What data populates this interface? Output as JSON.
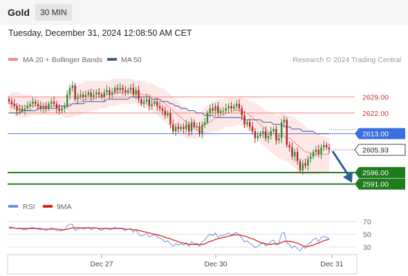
{
  "header": {
    "instrument": "Gold",
    "timeframe": "30 MIN"
  },
  "timestamp": "Tuesday, December 31, 2024 12:08:50 AM CET",
  "legend": {
    "bollinger": "MA 20 + Bollinger Bands",
    "ma50": "MA 50",
    "credit": "Research © 2024 Trading Central",
    "rsi": "RSI",
    "rsi_ma": "9MA"
  },
  "colors": {
    "bollinger": "#f28b8b",
    "ma50": "#3d5a99",
    "up_candle": "#2e8b2e",
    "down_candle": "#b22222",
    "resistance": "#f19a9a",
    "pivot": "#6f8ff0",
    "support": "#1e7b1e",
    "rsi": "#6f8fe6",
    "rsi_ma": "#dd2222",
    "arrow": "#2e5c8e"
  },
  "chart_data": [
    {
      "type": "candlestick",
      "title": "Gold",
      "timeframe": "30 MIN",
      "x_ticks": [
        "Dec 27",
        "Dec 30",
        "Dec 31"
      ],
      "ylim": [
        2587,
        2640
      ],
      "last_price": "2605.93",
      "levels": [
        {
          "value": "2629.00",
          "role": "resistance"
        },
        {
          "value": "2622.00",
          "role": "resistance"
        },
        {
          "value": "2613.00",
          "role": "pivot"
        },
        {
          "value": "2596.00",
          "role": "support"
        },
        {
          "value": "2591.00",
          "role": "support"
        }
      ],
      "closes": [
        2627,
        2626,
        2625,
        2623,
        2624,
        2623,
        2624,
        2625,
        2626,
        2627,
        2626,
        2625,
        2624,
        2625,
        2624,
        2626,
        2627,
        2626,
        2624,
        2623,
        2624,
        2625,
        2630,
        2633,
        2634,
        2628,
        2629,
        2630,
        2629,
        2630,
        2631,
        2629,
        2630,
        2631,
        2630,
        2629,
        2631,
        2632,
        2630,
        2631,
        2633,
        2632,
        2633,
        2632,
        2631,
        2632,
        2633,
        2630,
        2632,
        2628,
        2626,
        2627,
        2628,
        2625,
        2626,
        2627,
        2625,
        2624,
        2623,
        2621,
        2622,
        2617,
        2614,
        2616,
        2615,
        2616,
        2615,
        2617,
        2614,
        2618,
        2616,
        2616,
        2613,
        2617,
        2618,
        2622,
        2624,
        2623,
        2625,
        2622,
        2623,
        2623,
        2624,
        2625,
        2624,
        2625,
        2626,
        2624,
        2621,
        2617,
        2618,
        2616,
        2614,
        2611,
        2612,
        2613,
        2614,
        2611,
        2612,
        2614,
        2615,
        2610,
        2611,
        2618,
        2619,
        2608,
        2607,
        2603,
        2605,
        2601,
        2597,
        2600,
        2599,
        2602,
        2603,
        2605,
        2606,
        2604,
        2607,
        2608,
        2607,
        2606
      ],
      "ma20": [
        2626,
        2626,
        2626,
        2625,
        2625,
        2625,
        2625,
        2625,
        2625,
        2625,
        2625,
        2625,
        2625,
        2625,
        2625,
        2625,
        2625,
        2625,
        2625,
        2625,
        2625,
        2625,
        2625,
        2626,
        2626,
        2626,
        2627,
        2627,
        2627,
        2628,
        2628,
        2628,
        2628,
        2629,
        2629,
        2629,
        2630,
        2630,
        2630,
        2630,
        2631,
        2631,
        2631,
        2631,
        2631,
        2631,
        2631,
        2631,
        2631,
        2631,
        2630,
        2630,
        2630,
        2630,
        2629,
        2629,
        2628,
        2628,
        2627,
        2626,
        2625,
        2624,
        2623,
        2622,
        2621,
        2620,
        2619,
        2618,
        2617,
        2616,
        2616,
        2616,
        2616,
        2616,
        2617,
        2618,
        2618,
        2619,
        2620,
        2620,
        2621,
        2621,
        2622,
        2622,
        2622,
        2623,
        2623,
        2623,
        2623,
        2622,
        2622,
        2621,
        2620,
        2619,
        2618,
        2617,
        2616,
        2615,
        2614,
        2613,
        2613,
        2612,
        2612,
        2612,
        2612,
        2611,
        2611,
        2610,
        2609,
        2608,
        2607,
        2606,
        2605,
        2605,
        2604,
        2604,
        2604,
        2604,
        2604,
        2604,
        2604,
        2604
      ],
      "bb_upper": [
        2630,
        2631,
        2631,
        2631,
        2631,
        2630,
        2630,
        2630,
        2630,
        2629,
        2629,
        2629,
        2629,
        2629,
        2629,
        2629,
        2629,
        2629,
        2629,
        2629,
        2629,
        2629,
        2631,
        2633,
        2634,
        2634,
        2634,
        2635,
        2635,
        2636,
        2636,
        2636,
        2636,
        2636,
        2636,
        2636,
        2636,
        2636,
        2636,
        2637,
        2637,
        2637,
        2637,
        2637,
        2637,
        2637,
        2637,
        2637,
        2636,
        2636,
        2636,
        2636,
        2635,
        2635,
        2635,
        2634,
        2634,
        2633,
        2633,
        2632,
        2631,
        2630,
        2629,
        2628,
        2627,
        2626,
        2625,
        2624,
        2623,
        2622,
        2622,
        2622,
        2622,
        2623,
        2624,
        2625,
        2626,
        2627,
        2627,
        2628,
        2628,
        2628,
        2629,
        2629,
        2629,
        2629,
        2629,
        2629,
        2629,
        2628,
        2628,
        2627,
        2627,
        2626,
        2626,
        2625,
        2624,
        2623,
        2623,
        2622,
        2622,
        2621,
        2621,
        2622,
        2622,
        2621,
        2621,
        2620,
        2620,
        2619,
        2618,
        2617,
        2616,
        2615,
        2615,
        2614,
        2613,
        2613,
        2612,
        2612,
        2611,
        2611
      ],
      "bb_lower": [
        2622,
        2622,
        2621,
        2620,
        2620,
        2620,
        2620,
        2620,
        2621,
        2621,
        2621,
        2621,
        2621,
        2621,
        2621,
        2621,
        2621,
        2621,
        2621,
        2621,
        2621,
        2620,
        2620,
        2620,
        2620,
        2621,
        2621,
        2621,
        2622,
        2622,
        2622,
        2623,
        2623,
        2623,
        2624,
        2624,
        2624,
        2624,
        2625,
        2625,
        2625,
        2625,
        2626,
        2626,
        2626,
        2626,
        2626,
        2626,
        2626,
        2625,
        2625,
        2625,
        2624,
        2624,
        2623,
        2622,
        2621,
        2620,
        2619,
        2618,
        2617,
        2616,
        2615,
        2614,
        2613,
        2612,
        2612,
        2611,
        2611,
        2611,
        2611,
        2611,
        2611,
        2612,
        2612,
        2613,
        2613,
        2614,
        2614,
        2614,
        2615,
        2615,
        2616,
        2616,
        2616,
        2616,
        2617,
        2617,
        2616,
        2616,
        2615,
        2614,
        2613,
        2612,
        2611,
        2609,
        2608,
        2607,
        2606,
        2605,
        2604,
        2603,
        2602,
        2602,
        2601,
        2601,
        2600,
        2599,
        2598,
        2597,
        2596,
        2595,
        2595,
        2595,
        2595,
        2595,
        2595,
        2595,
        2596,
        2596,
        2596,
        2596
      ],
      "ma50": [
        2622,
        2622,
        2622,
        2622,
        2622,
        2623,
        2623,
        2623,
        2623,
        2623,
        2623,
        2624,
        2624,
        2624,
        2624,
        2624,
        2624,
        2624,
        2624,
        2625,
        2625,
        2625,
        2625,
        2625,
        2626,
        2626,
        2626,
        2626,
        2626,
        2627,
        2627,
        2627,
        2627,
        2627,
        2627,
        2627,
        2627,
        2628,
        2628,
        2628,
        2628,
        2628,
        2628,
        2628,
        2628,
        2628,
        2629,
        2629,
        2629,
        2629,
        2629,
        2629,
        2629,
        2629,
        2628,
        2628,
        2628,
        2628,
        2627,
        2627,
        2627,
        2626,
        2626,
        2625,
        2625,
        2624,
        2624,
        2624,
        2623,
        2623,
        2623,
        2622,
        2622,
        2622,
        2621,
        2621,
        2621,
        2621,
        2620,
        2620,
        2620,
        2620,
        2620,
        2620,
        2620,
        2620,
        2620,
        2620,
        2620,
        2619,
        2619,
        2619,
        2619,
        2619,
        2619,
        2619,
        2618,
        2618,
        2618,
        2618,
        2617,
        2617,
        2617,
        2617,
        2616,
        2616,
        2616,
        2615,
        2615,
        2615,
        2615,
        2614,
        2614,
        2614,
        2614,
        2614,
        2613,
        2613,
        2613,
        2613,
        2613,
        2613
      ]
    },
    {
      "type": "line",
      "title": "RSI",
      "y_ticks": [
        "70",
        "50",
        "30"
      ],
      "ylim": [
        20,
        80
      ],
      "series": [
        {
          "name": "RSI",
          "values": [
            62,
            61,
            60,
            59,
            60,
            58,
            57,
            58,
            60,
            61,
            59,
            58,
            57,
            58,
            56,
            58,
            60,
            59,
            56,
            55,
            56,
            57,
            63,
            66,
            65,
            56,
            58,
            60,
            58,
            59,
            61,
            57,
            59,
            60,
            58,
            56,
            59,
            60,
            57,
            58,
            61,
            59,
            60,
            58,
            56,
            58,
            59,
            53,
            57,
            50,
            47,
            49,
            51,
            46,
            48,
            50,
            46,
            44,
            42,
            38,
            40,
            35,
            31,
            35,
            33,
            35,
            33,
            37,
            31,
            39,
            35,
            36,
            31,
            39,
            41,
            47,
            50,
            48,
            52,
            45,
            48,
            48,
            50,
            52,
            49,
            51,
            53,
            49,
            44,
            38,
            40,
            36,
            33,
            29,
            31,
            34,
            37,
            32,
            34,
            39,
            41,
            33,
            36,
            51,
            53,
            36,
            34,
            28,
            32,
            27,
            24,
            30,
            28,
            35,
            37,
            42,
            44,
            38,
            45,
            47,
            45,
            43
          ]
        },
        {
          "name": "9MA",
          "values": [
            60,
            60,
            60,
            59,
            59,
            59,
            59,
            59,
            59,
            59,
            59,
            59,
            59,
            58,
            58,
            58,
            58,
            58,
            58,
            58,
            57,
            57,
            58,
            59,
            60,
            60,
            60,
            60,
            60,
            60,
            60,
            60,
            60,
            60,
            59,
            59,
            59,
            59,
            59,
            59,
            59,
            59,
            59,
            59,
            58,
            58,
            58,
            57,
            57,
            56,
            55,
            54,
            53,
            52,
            51,
            50,
            49,
            48,
            47,
            45,
            44,
            43,
            41,
            40,
            38,
            37,
            36,
            35,
            34,
            34,
            34,
            34,
            34,
            34,
            35,
            37,
            39,
            40,
            42,
            43,
            44,
            45,
            46,
            47,
            48,
            49,
            49,
            49,
            48,
            47,
            46,
            44,
            43,
            41,
            39,
            37,
            36,
            35,
            34,
            34,
            35,
            35,
            35,
            37,
            39,
            39,
            39,
            38,
            37,
            36,
            34,
            32,
            31,
            31,
            32,
            33,
            35,
            36,
            38,
            40,
            41,
            42
          ]
        }
      ]
    }
  ]
}
